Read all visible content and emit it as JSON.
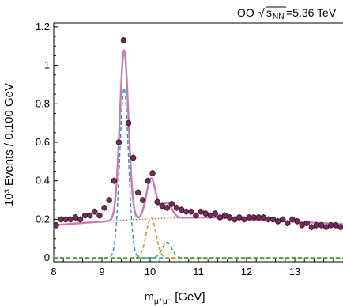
{
  "chart_data": {
    "type": "line",
    "header": {
      "system": "OO",
      "sqrt_symbol": "√",
      "energy_symbol": "s",
      "energy_subscript": "NN",
      "energy_value": "=5.36 TeV"
    },
    "xlabel": {
      "main": "m",
      "subscript": "μ⁺μ⁻",
      "unit": " [GeV]"
    },
    "ylabel": "10³ Events / 0.100 GeV",
    "xlim": [
      8,
      14
    ],
    "ylim": [
      -0.02,
      1.22
    ],
    "x_ticks": [
      "8",
      "9",
      "10",
      "11",
      "12",
      "13"
    ],
    "y_ticks": [
      "0",
      "0.2",
      "0.4",
      "0.6",
      "0.8",
      "1",
      "1.2"
    ],
    "grid": false,
    "colors": {
      "data_points": "#7a2a5a",
      "total_fit": "#c77bb0",
      "upsilon_1s": "#2a8fc9",
      "upsilon_2s": "#f07f0e",
      "upsilon_3s": "#2ca02c",
      "background": "#d6504a"
    },
    "data_points": {
      "x": [
        8.05,
        8.15,
        8.25,
        8.35,
        8.45,
        8.55,
        8.65,
        8.75,
        8.85,
        8.95,
        9.05,
        9.15,
        9.25,
        9.35,
        9.45,
        9.55,
        9.65,
        9.75,
        9.85,
        9.95,
        10.05,
        10.15,
        10.25,
        10.35,
        10.45,
        10.55,
        10.65,
        10.75,
        10.85,
        10.95,
        11.05,
        11.15,
        11.25,
        11.35,
        11.45,
        11.55,
        11.65,
        11.75,
        11.85,
        11.95,
        12.05,
        12.15,
        12.25,
        12.35,
        12.45,
        12.55,
        12.65,
        12.75,
        12.85,
        12.95,
        13.05,
        13.15,
        13.25,
        13.35,
        13.45,
        13.55,
        13.65,
        13.75,
        13.85,
        13.95
      ],
      "y": [
        0.17,
        0.2,
        0.2,
        0.2,
        0.21,
        0.2,
        0.22,
        0.22,
        0.24,
        0.22,
        0.26,
        0.3,
        0.4,
        0.6,
        1.13,
        0.7,
        0.52,
        0.34,
        0.3,
        0.4,
        0.44,
        0.29,
        0.27,
        0.26,
        0.28,
        0.26,
        0.25,
        0.24,
        0.24,
        0.22,
        0.24,
        0.23,
        0.22,
        0.23,
        0.21,
        0.22,
        0.21,
        0.2,
        0.21,
        0.2,
        0.21,
        0.21,
        0.21,
        0.21,
        0.2,
        0.2,
        0.19,
        0.2,
        0.18,
        0.2,
        0.19,
        0.17,
        0.18,
        0.16,
        0.17,
        0.17,
        0.16,
        0.17,
        0.17,
        0.16
      ]
    },
    "fit_components": {
      "upsilon_1s": {
        "mass": 9.46,
        "sigma": 0.09,
        "peak": 0.88
      },
      "upsilon_2s": {
        "mass": 10.02,
        "sigma": 0.1,
        "peak": 0.21
      },
      "upsilon_3s": {
        "mass": 10.35,
        "sigma": 0.1,
        "peak": 0.08
      },
      "background": {
        "start_value": 0.17,
        "max_value": 0.21,
        "max_at": 11.3,
        "end_value": 0.175
      }
    }
  }
}
